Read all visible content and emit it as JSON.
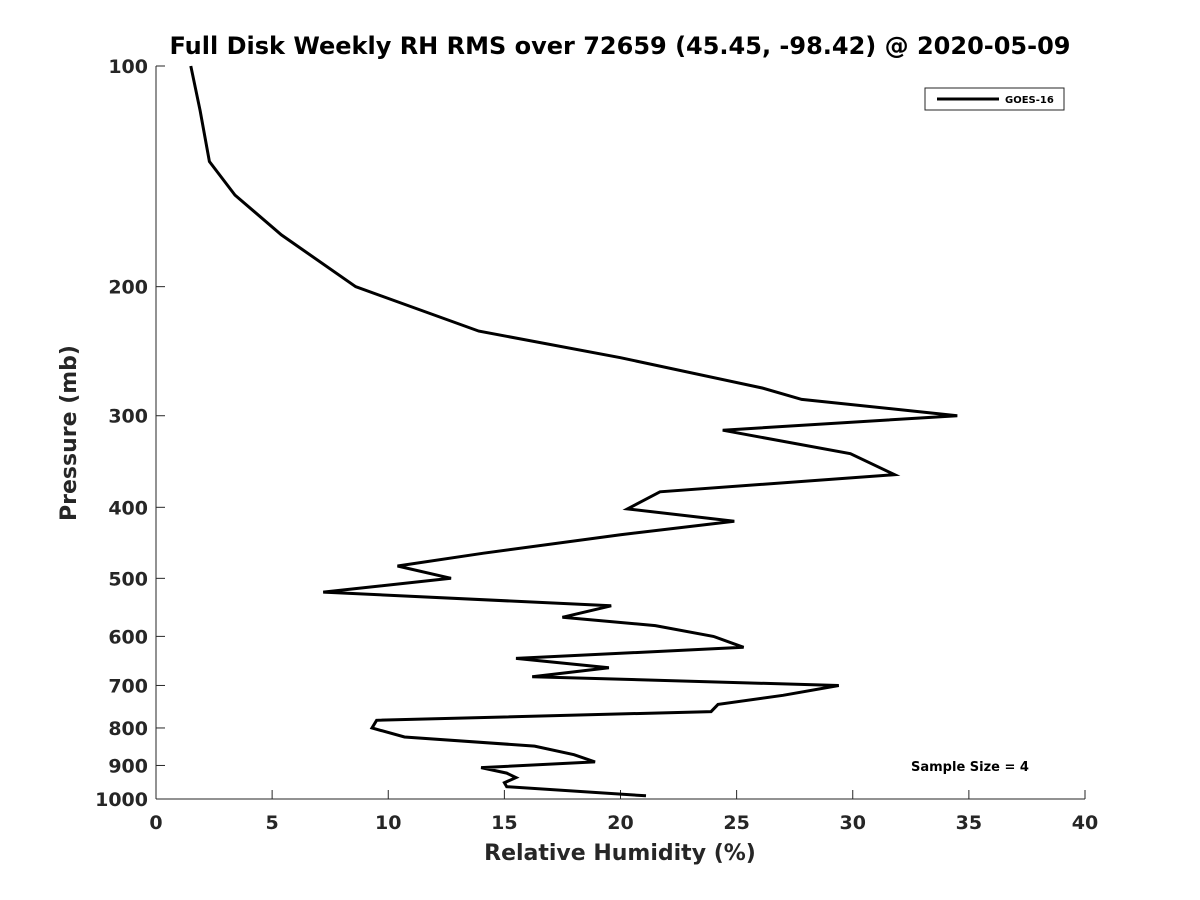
{
  "chart_data": {
    "type": "line",
    "title": "Full Disk Weekly RH RMS over 72659 (45.45, -98.42) @ 2020-05-09",
    "xlabel": "Relative Humidity (%)",
    "ylabel": "Pressure (mb)",
    "xlim": [
      0,
      40
    ],
    "ylim": [
      100,
      1000
    ],
    "y_scale": "log",
    "y_reversed": true,
    "x_ticks": [
      0,
      5,
      10,
      15,
      20,
      25,
      30,
      35,
      40
    ],
    "y_ticks": [
      100,
      200,
      300,
      400,
      500,
      600,
      700,
      800,
      900,
      1000
    ],
    "grid": false,
    "legend_position": "top-right",
    "series": [
      {
        "name": "GOES-16",
        "color": "#000000",
        "points": [
          [
            1.5,
            100
          ],
          [
            1.9,
            115
          ],
          [
            2.3,
            135
          ],
          [
            3.4,
            150
          ],
          [
            5.4,
            170
          ],
          [
            8.6,
            200
          ],
          [
            13.9,
            230
          ],
          [
            20.0,
            250
          ],
          [
            26.1,
            275
          ],
          [
            27.8,
            285
          ],
          [
            34.5,
            300
          ],
          [
            24.4,
            314
          ],
          [
            29.9,
            338
          ],
          [
            31.8,
            361
          ],
          [
            21.7,
            381
          ],
          [
            20.3,
            402
          ],
          [
            24.9,
            418
          ],
          [
            20.0,
            436
          ],
          [
            14.1,
            462
          ],
          [
            10.4,
            481
          ],
          [
            12.7,
            500
          ],
          [
            7.2,
            522
          ],
          [
            19.6,
            545
          ],
          [
            17.5,
            565
          ],
          [
            21.5,
            580
          ],
          [
            24.0,
            600
          ],
          [
            25.3,
            621
          ],
          [
            15.5,
            643
          ],
          [
            19.5,
            662
          ],
          [
            16.2,
            681
          ],
          [
            29.4,
            700
          ],
          [
            27.0,
            722
          ],
          [
            24.2,
            743
          ],
          [
            23.9,
            760
          ],
          [
            9.5,
            781
          ],
          [
            9.3,
            800
          ],
          [
            10.7,
            823
          ],
          [
            16.3,
            847
          ],
          [
            18.0,
            870
          ],
          [
            18.9,
            890
          ],
          [
            14.0,
            906
          ],
          [
            15.1,
            922
          ],
          [
            15.5,
            935
          ],
          [
            15.0,
            950
          ],
          [
            15.1,
            962
          ],
          [
            21.1,
            990
          ]
        ]
      }
    ],
    "annotations": [
      "Sample Size = 4"
    ]
  }
}
